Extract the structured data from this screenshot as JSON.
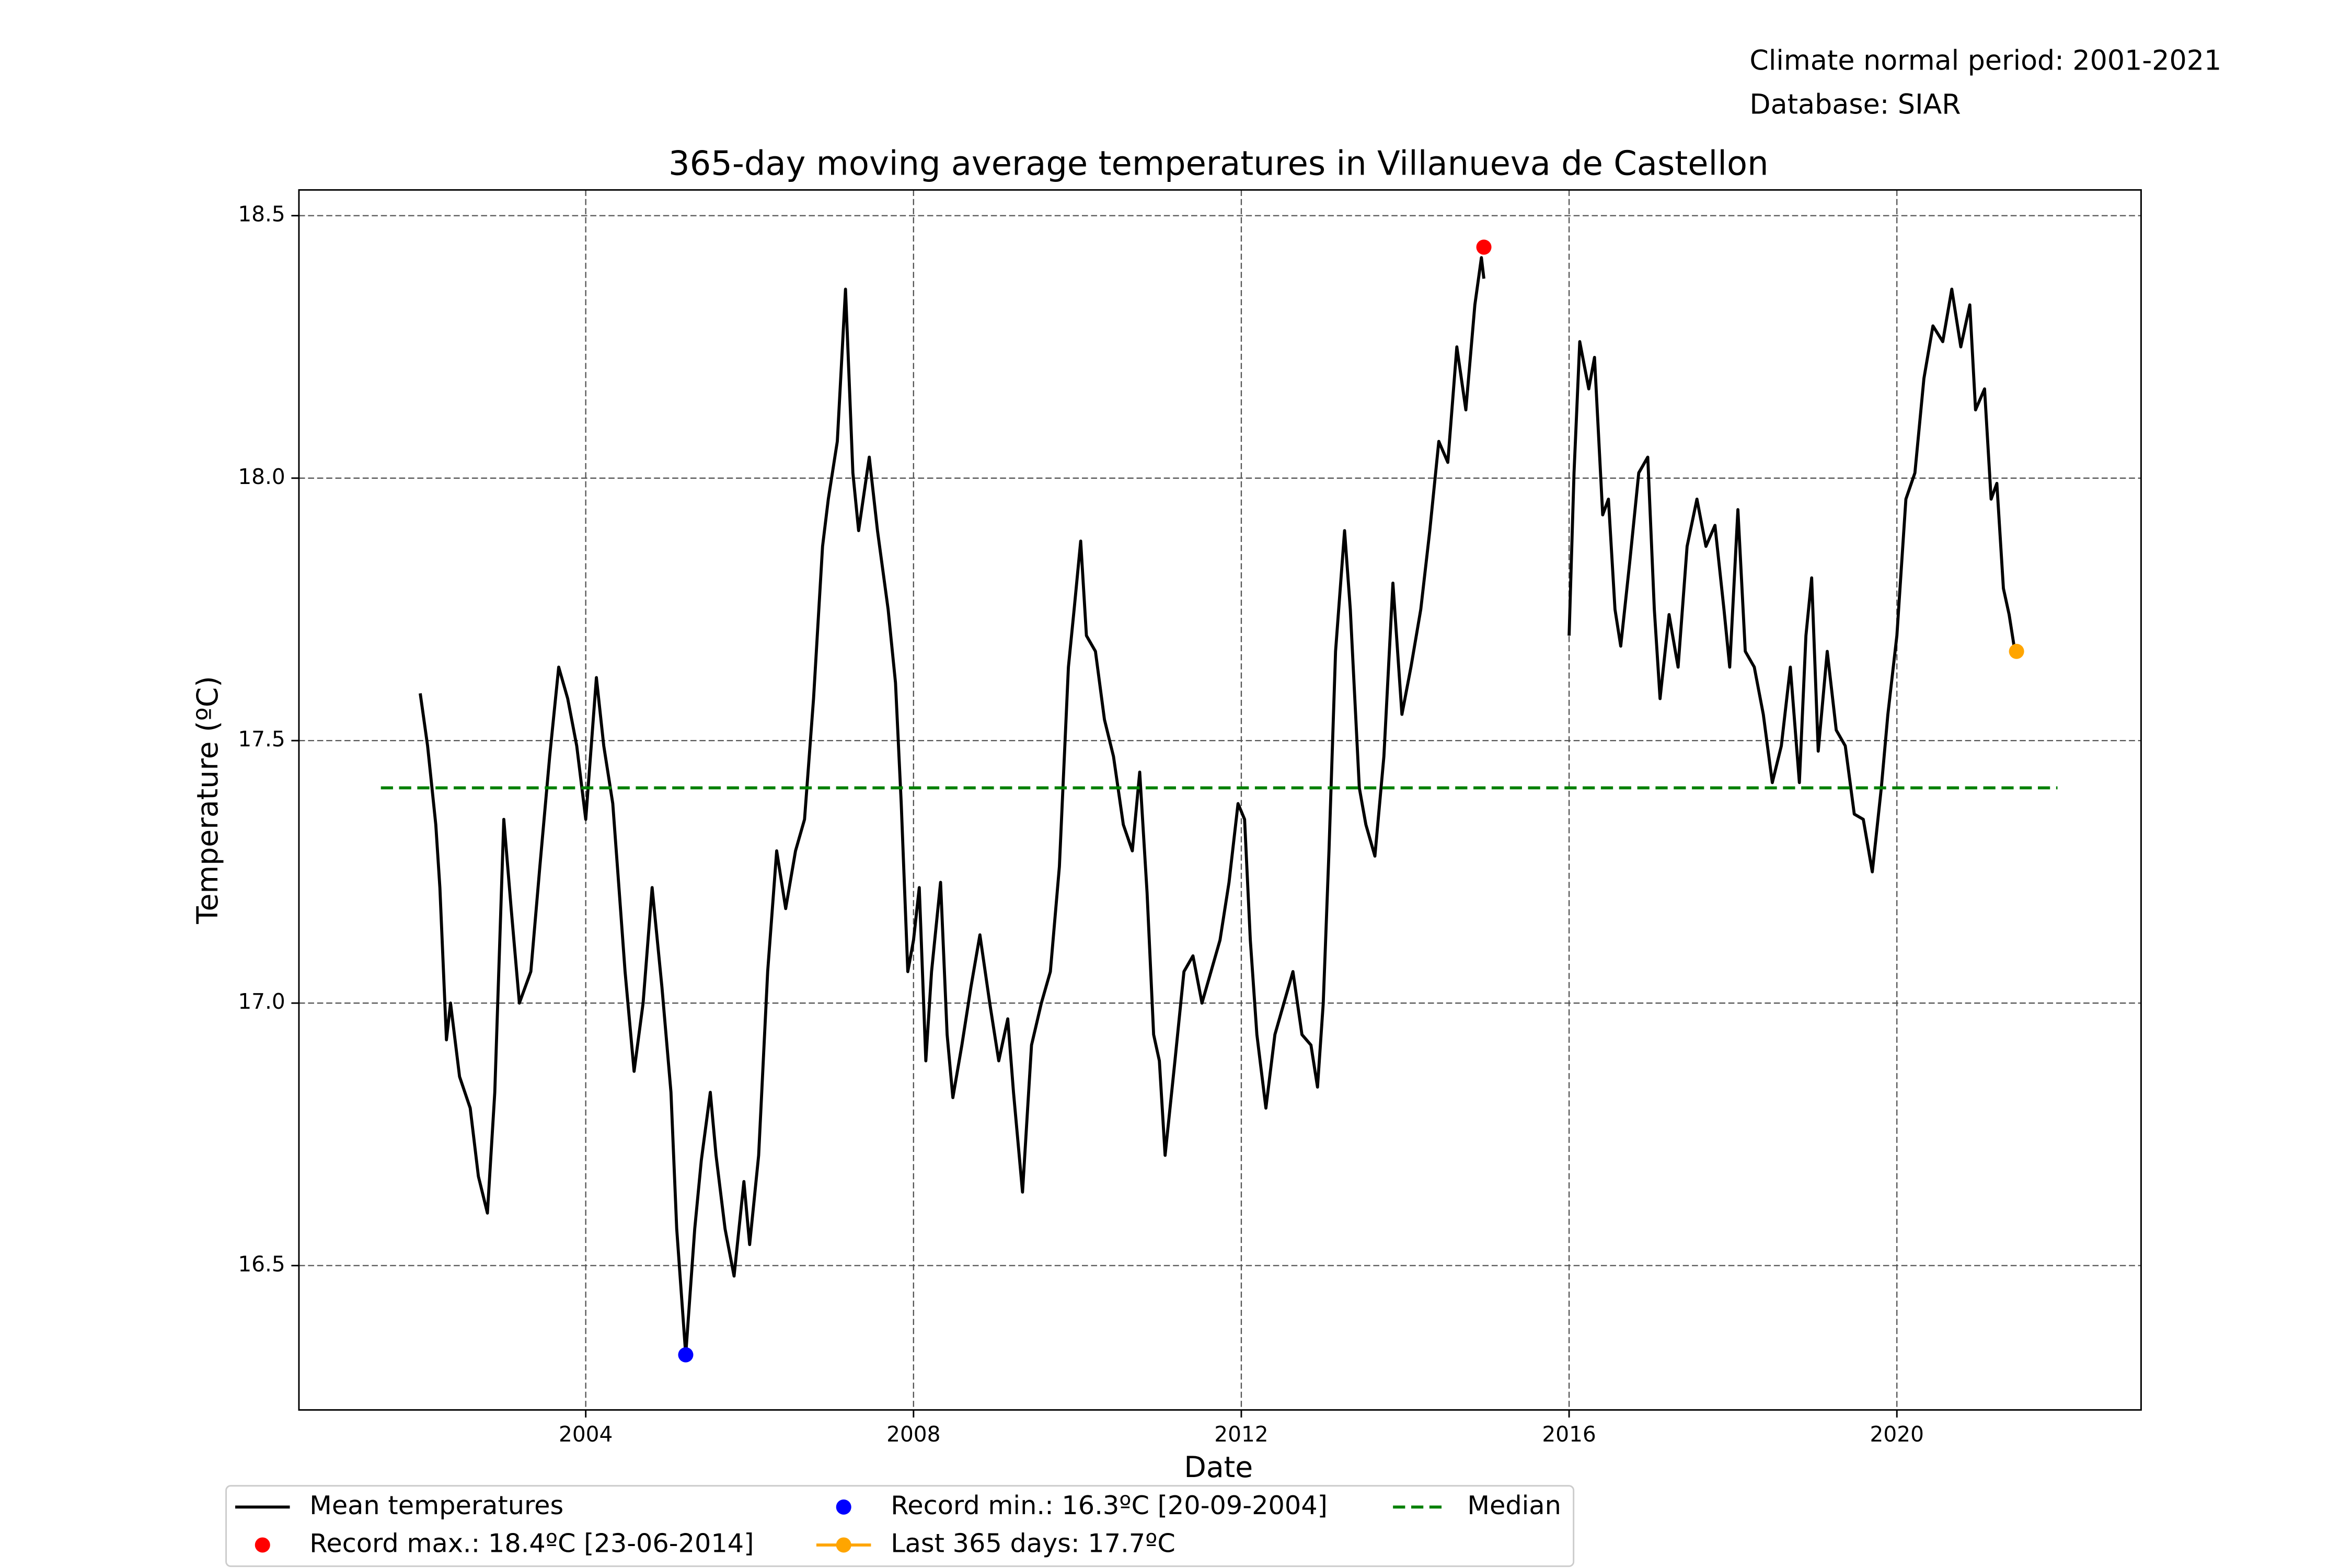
{
  "chart_data": {
    "type": "line",
    "title": "365-day moving average temperatures in Villanueva de Castellon",
    "annotations": [
      "Climate normal period: 2001-2021",
      "Database: SIAR"
    ],
    "x_label": "Date",
    "y_label": "Temperature (ºC)",
    "xlim": [
      2000.5,
      2022.98
    ],
    "ylim": [
      16.225,
      18.549
    ],
    "xticks": [
      2004,
      2008,
      2012,
      2016,
      2020
    ],
    "yticks": [
      {
        "value": 16.5,
        "label": "16.5"
      },
      {
        "value": 17,
        "label": "17.0"
      },
      {
        "value": 17.5,
        "label": "17.5"
      },
      {
        "value": 18,
        "label": "18.0"
      },
      {
        "value": 18.5,
        "label": "18.5"
      }
    ],
    "grid": true,
    "legend": "below",
    "series": [
      {
        "name": "Mean temperatures",
        "color": "#000000",
        "linestyle": "solid",
        "marker": false,
        "x": [
          2001.98,
          2002.07,
          2002.17,
          2002.22,
          2002.3,
          2002.35,
          2002.46,
          2002.59,
          2002.69,
          2002.8,
          2002.89,
          2003.0,
          2003.09,
          2003.19,
          2003.33,
          2003.44,
          2003.56,
          2003.67,
          2003.78,
          2003.89,
          2004.0,
          2004.13,
          2004.22,
          2004.33,
          2004.41,
          2004.48,
          2004.59,
          2004.7,
          2004.81,
          2004.93,
          2005.04,
          2005.11,
          2005.22,
          2005.33,
          2005.41,
          2005.52,
          2005.59,
          2005.7,
          2005.81,
          2005.93,
          2006.0,
          2006.11,
          2006.22,
          2006.33,
          2006.44,
          2006.56,
          2006.67,
          2006.78,
          2006.89,
          2006.96,
          2007.07,
          2007.17,
          2007.26,
          2007.33,
          2007.46,
          2007.56,
          2007.69,
          2007.78,
          2007.85,
          2007.93,
          2008.0,
          2008.07,
          2008.15,
          2008.22,
          2008.33,
          2008.41,
          2008.48,
          2008.59,
          2008.7,
          2008.81,
          2008.93,
          2009.04,
          2009.15,
          2009.22,
          2009.33,
          2009.44,
          2009.56,
          2009.67,
          2009.78,
          2009.89,
          2009.96,
          2010.04,
          2010.11,
          2010.22,
          2010.33,
          2010.44,
          2010.56,
          2010.67,
          2010.76,
          2010.85,
          2010.93,
          2011.0,
          2011.07,
          2011.19,
          2011.3,
          2011.41,
          2011.52,
          2011.63,
          2011.74,
          2011.85,
          2011.96,
          2012.04,
          2012.11,
          2012.19,
          2012.3,
          2012.41,
          2012.52,
          2012.63,
          2012.74,
          2012.85,
          2012.93,
          2013.0,
          2013.07,
          2013.15,
          2013.26,
          2013.33,
          2013.44,
          2013.52,
          2013.63,
          2013.74,
          2013.85,
          2013.96,
          2014.07,
          2014.19,
          2014.3,
          2014.41,
          2014.52,
          2014.63,
          2014.74,
          2014.85,
          2014.93,
          2014.96,
          null,
          2016.0,
          2016.06,
          2016.13,
          2016.24,
          2016.31,
          2016.41,
          2016.48,
          2016.56,
          2016.63,
          2016.74,
          2016.85,
          2016.96,
          2017.04,
          2017.11,
          2017.22,
          2017.33,
          2017.44,
          2017.56,
          2017.67,
          2017.78,
          2017.89,
          2017.96,
          2018.06,
          2018.15,
          2018.26,
          2018.37,
          2018.48,
          2018.59,
          2018.7,
          2018.81,
          2018.89,
          2018.96,
          2019.04,
          2019.15,
          2019.26,
          2019.37,
          2019.48,
          2019.59,
          2019.7,
          2019.81,
          2019.89,
          2020.0,
          2020.11,
          2020.22,
          2020.33,
          2020.44,
          2020.56,
          2020.67,
          2020.78,
          2020.89,
          2020.96,
          2021.07,
          2021.15,
          2021.22,
          2021.3,
          2021.37,
          2021.44
        ],
        "values": [
          17.59,
          17.49,
          17.34,
          17.22,
          16.93,
          17.0,
          16.86,
          16.8,
          16.67,
          16.6,
          16.83,
          17.35,
          17.18,
          17.0,
          17.06,
          17.26,
          17.47,
          17.64,
          17.58,
          17.49,
          17.35,
          17.62,
          17.49,
          17.38,
          17.21,
          17.06,
          16.87,
          17.0,
          17.22,
          17.03,
          16.83,
          16.57,
          16.33,
          16.57,
          16.7,
          16.83,
          16.71,
          16.57,
          16.48,
          16.66,
          16.54,
          16.71,
          17.06,
          17.29,
          17.18,
          17.29,
          17.35,
          17.58,
          17.87,
          17.96,
          18.07,
          18.36,
          18.01,
          17.9,
          18.04,
          17.9,
          17.75,
          17.61,
          17.38,
          17.06,
          17.12,
          17.22,
          16.89,
          17.06,
          17.23,
          16.94,
          16.82,
          16.92,
          17.03,
          17.13,
          17.0,
          16.89,
          16.97,
          16.83,
          16.64,
          16.92,
          17.0,
          17.06,
          17.26,
          17.64,
          17.75,
          17.88,
          17.7,
          17.67,
          17.54,
          17.47,
          17.34,
          17.29,
          17.44,
          17.21,
          16.94,
          16.89,
          16.71,
          16.89,
          17.06,
          17.09,
          17.0,
          17.06,
          17.12,
          17.23,
          17.38,
          17.35,
          17.12,
          16.94,
          16.8,
          16.94,
          17.0,
          17.06,
          16.94,
          16.92,
          16.84,
          17.0,
          17.29,
          17.67,
          17.9,
          17.75,
          17.41,
          17.34,
          17.28,
          17.47,
          17.8,
          17.55,
          17.64,
          17.75,
          17.9,
          18.07,
          18.03,
          18.25,
          18.13,
          18.33,
          18.42,
          18.38,
          null,
          17.7,
          18.01,
          18.26,
          18.17,
          18.23,
          17.93,
          17.96,
          17.75,
          17.68,
          17.84,
          18.01,
          18.04,
          17.75,
          17.58,
          17.74,
          17.64,
          17.87,
          17.96,
          17.87,
          17.91,
          17.75,
          17.64,
          17.94,
          17.67,
          17.64,
          17.55,
          17.42,
          17.49,
          17.64,
          17.42,
          17.7,
          17.81,
          17.48,
          17.67,
          17.52,
          17.49,
          17.36,
          17.35,
          17.25,
          17.41,
          17.55,
          17.7,
          17.96,
          18.01,
          18.19,
          18.29,
          18.26,
          18.36,
          18.25,
          18.33,
          18.13,
          18.17,
          17.96,
          17.99,
          17.79,
          17.74,
          17.67
        ]
      },
      {
        "name": "Record max.: 18.4ºC [23-06-2014]",
        "color": "#ff0000",
        "linestyle": "none",
        "marker": true,
        "x": [
          2014.96
        ],
        "values": [
          18.44
        ]
      },
      {
        "name": "Record min.: 16.3ºC [20-09-2004]",
        "color": "#0000ff",
        "linestyle": "none",
        "marker": true,
        "x": [
          2005.22
        ],
        "values": [
          16.33
        ]
      },
      {
        "name": "Last 365 days: 17.7ºC",
        "color": "#ffa500",
        "linestyle": "solid",
        "marker": true,
        "x": [
          2021.46
        ],
        "values": [
          17.67
        ]
      },
      {
        "name": "Median",
        "color": "#008000",
        "linestyle": "dashed",
        "marker": false,
        "x": [
          2001.5,
          2021.96
        ],
        "values": [
          17.41,
          17.41
        ]
      }
    ]
  }
}
